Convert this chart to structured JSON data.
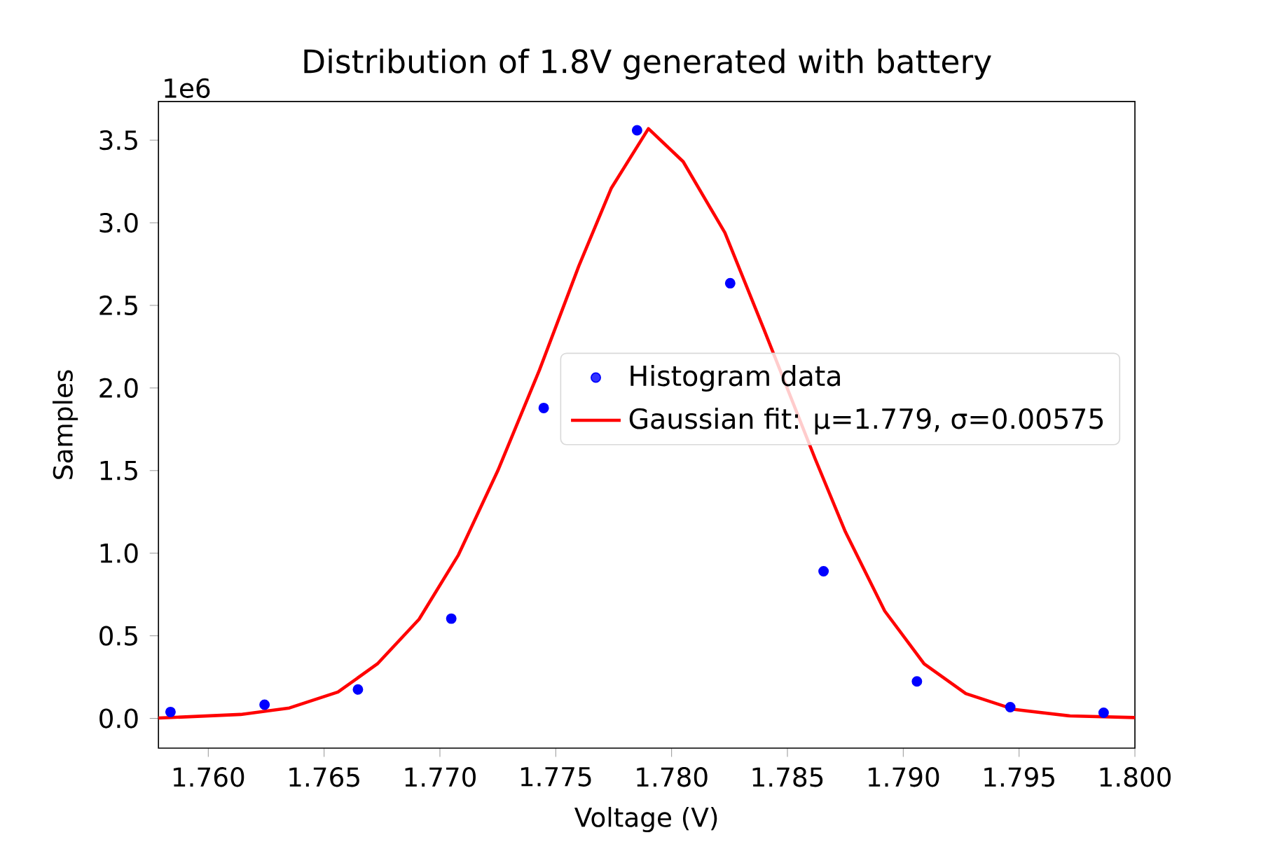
{
  "chart_data": {
    "type": "scatter",
    "title": "Distribution of 1.8V generated with battery",
    "xlabel": "Voltage (V)",
    "ylabel": "Samples",
    "annotations": [
      "1e6"
    ],
    "series": [
      {
        "name": "Histogram data",
        "color": "#0000ff",
        "marker": "circle",
        "x": [
          1.75837,
          1.76243,
          1.76646,
          1.77049,
          1.77448,
          1.77851,
          1.78253,
          1.78656,
          1.79059,
          1.79462,
          1.79865
        ],
        "values": [
          0.039,
          0.083,
          0.175,
          0.604,
          1.879,
          3.56,
          2.634,
          0.891,
          0.224,
          0.068,
          0.034
        ]
      },
      {
        "name": "Gaussian fit: μ=1.779, σ=0.00575",
        "type": "line",
        "color": "#ff0000",
        "marker": "none",
        "line_style": "solid",
        "x": [
          1.75785,
          1.7614,
          1.7635,
          1.7656,
          1.7673,
          1.7691,
          1.7708,
          1.7725,
          1.7743,
          1.776,
          1.7774,
          1.779,
          1.7805,
          1.7823,
          1.784,
          1.7862,
          1.7875,
          1.7892,
          1.7909,
          1.7927,
          1.7948,
          1.7972,
          1.8
        ],
        "values": [
          0.002,
          0.024,
          0.063,
          0.16,
          0.33,
          0.6,
          0.99,
          1.5,
          2.11,
          2.74,
          3.21,
          3.57,
          3.37,
          2.94,
          2.35,
          1.57,
          1.13,
          0.65,
          0.33,
          0.15,
          0.054,
          0.015,
          0.005
        ]
      }
    ],
    "xlim": [
      1.75785,
      1.8
    ],
    "ylim": [
      -0.18,
      3.734
    ],
    "xticks": [
      {
        "value": 1.76,
        "label": "1.760"
      },
      {
        "value": 1.765,
        "label": "1.765"
      },
      {
        "value": 1.77,
        "label": "1.770"
      },
      {
        "value": 1.775,
        "label": "1.775"
      },
      {
        "value": 1.78,
        "label": "1.780"
      },
      {
        "value": 1.785,
        "label": "1.785"
      },
      {
        "value": 1.79,
        "label": "1.790"
      },
      {
        "value": 1.795,
        "label": "1.795"
      },
      {
        "value": 1.8,
        "label": "1.800"
      }
    ],
    "yticks": [
      {
        "value": 0,
        "label": "0.0"
      },
      0.5,
      {
        "value": 1,
        "label": "1.0"
      },
      1.5,
      {
        "value": 2,
        "label": "2.0"
      },
      2.5,
      {
        "value": 3,
        "label": "3.0"
      },
      3.5
    ],
    "grid": false,
    "legend": "right"
  }
}
